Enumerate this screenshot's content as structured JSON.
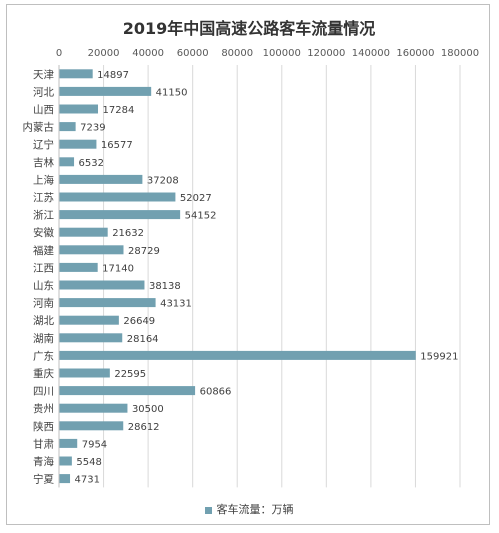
{
  "chart_data": {
    "type": "bar",
    "orientation": "horizontal",
    "title": "2019年中国高速公路客车流量情况",
    "categories": [
      "天津",
      "河北",
      "山西",
      "内蒙古",
      "辽宁",
      "吉林",
      "上海",
      "江苏",
      "浙江",
      "安徽",
      "福建",
      "江西",
      "山东",
      "河南",
      "湖北",
      "湖南",
      "广东",
      "重庆",
      "四川",
      "贵州",
      "陕西",
      "甘肃",
      "青海",
      "宁夏"
    ],
    "series": [
      {
        "name": "客车流量：万辆",
        "values": [
          14897,
          41150,
          17284,
          7239,
          16577,
          6532,
          37208,
          52027,
          54152,
          21632,
          28729,
          17140,
          38138,
          43131,
          26649,
          28164,
          159921,
          22595,
          60866,
          30500,
          28612,
          7954,
          5548,
          4731
        ]
      }
    ],
    "xticks": [
      "0",
      "20000",
      "40000",
      "60000",
      "80000",
      "100000",
      "120000",
      "140000",
      "160000",
      "180000"
    ],
    "xlim": [
      0,
      180000
    ],
    "axis_position": "top",
    "grid": true,
    "legend_position": "bottom",
    "bar_color": "#71a0b0"
  }
}
